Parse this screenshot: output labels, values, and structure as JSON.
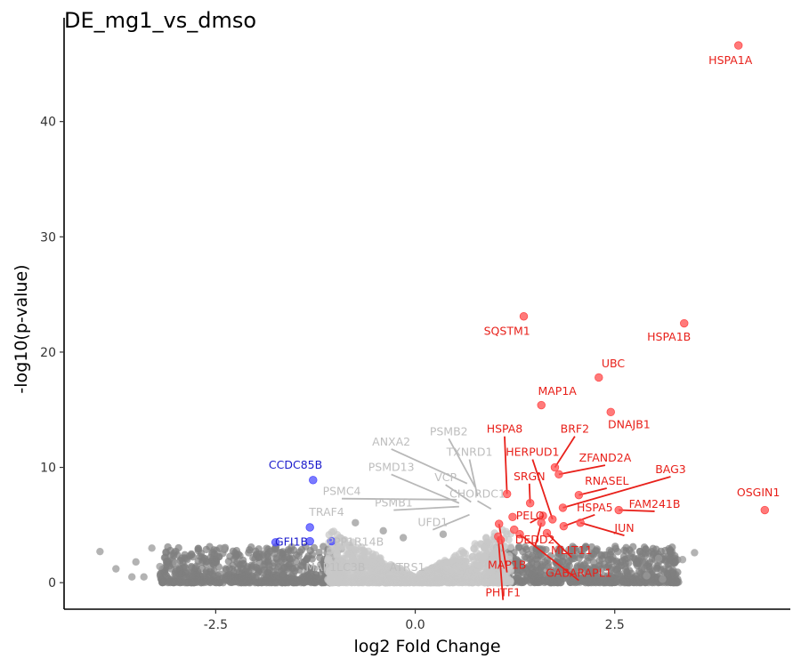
{
  "chart_data": {
    "type": "scatter",
    "title": "DE_mg1_vs_dmso",
    "xlabel": "log2 Fold Change",
    "ylabel": "-log10(p-value)",
    "xlim": [
      -4.4,
      4.7
    ],
    "ylim": [
      -2.3,
      49
    ],
    "xticks": [
      -2.5,
      0.0,
      2.5
    ],
    "xtick_labels": [
      "-2.5",
      "0.0",
      "2.5"
    ],
    "yticks": [
      0,
      10,
      20,
      30,
      40
    ],
    "ytick_labels": [
      "0",
      "10",
      "20",
      "30",
      "40"
    ],
    "grid": false,
    "legend": "none",
    "colors": {
      "up": "#ff4d4d",
      "up_label": "#e8201a",
      "down": "#4d4dff",
      "down_label": "#1a1acc",
      "ns_label": "#bebebe",
      "ns_light": "#c8c8c8",
      "ns_dark": "#7f7f7f"
    },
    "background_points": {
      "dark_left_x_range": [
        -3.2,
        -0.9
      ],
      "dark_right_x_range": [
        0.9,
        3.3
      ],
      "light_x_range": [
        -1.1,
        1.2
      ],
      "y_range": [
        0,
        3.5
      ],
      "outliers": [
        {
          "x": -3.95,
          "y": 2.7
        },
        {
          "x": -3.75,
          "y": 1.2
        },
        {
          "x": -3.5,
          "y": 1.8
        },
        {
          "x": -3.55,
          "y": 0.5
        },
        {
          "x": -3.4,
          "y": 0.5
        },
        {
          "x": -3.2,
          "y": 1.4
        },
        {
          "x": -3.0,
          "y": 1.7
        },
        {
          "x": -3.3,
          "y": 3.0
        },
        {
          "x": -2.4,
          "y": 3.0
        },
        {
          "x": 3.35,
          "y": 2.0
        },
        {
          "x": 3.5,
          "y": 2.6
        },
        {
          "x": 3.05,
          "y": 2.1
        },
        {
          "x": 3.1,
          "y": 0.3
        },
        {
          "x": 2.9,
          "y": 0.6
        },
        {
          "x": -0.75,
          "y": 5.2
        },
        {
          "x": -0.4,
          "y": 4.5
        },
        {
          "x": -0.15,
          "y": 3.9
        },
        {
          "x": 0.35,
          "y": 4.2
        }
      ]
    },
    "highlighted_points": [
      {
        "x": 4.05,
        "y": 46.6,
        "group": "up"
      },
      {
        "x": 3.37,
        "y": 22.5,
        "group": "up"
      },
      {
        "x": 1.36,
        "y": 23.1,
        "group": "up"
      },
      {
        "x": 2.3,
        "y": 17.8,
        "group": "up"
      },
      {
        "x": 1.58,
        "y": 15.4,
        "group": "up"
      },
      {
        "x": 2.45,
        "y": 14.8,
        "group": "up"
      },
      {
        "x": 4.38,
        "y": 6.3,
        "group": "up"
      },
      {
        "x": 1.15,
        "y": 7.7,
        "group": "up"
      },
      {
        "x": 1.44,
        "y": 6.9,
        "group": "up"
      },
      {
        "x": 1.75,
        "y": 10.0,
        "group": "up"
      },
      {
        "x": 1.8,
        "y": 9.4,
        "group": "up"
      },
      {
        "x": 2.05,
        "y": 7.6,
        "group": "up"
      },
      {
        "x": 1.85,
        "y": 6.5,
        "group": "up"
      },
      {
        "x": 2.55,
        "y": 6.3,
        "group": "up"
      },
      {
        "x": 1.22,
        "y": 5.7,
        "group": "up"
      },
      {
        "x": 1.6,
        "y": 5.8,
        "group": "up"
      },
      {
        "x": 1.72,
        "y": 5.5,
        "group": "up"
      },
      {
        "x": 2.07,
        "y": 5.2,
        "group": "up"
      },
      {
        "x": 1.58,
        "y": 5.2,
        "group": "up"
      },
      {
        "x": 1.86,
        "y": 4.9,
        "group": "up"
      },
      {
        "x": 1.05,
        "y": 5.1,
        "group": "up"
      },
      {
        "x": 1.24,
        "y": 4.6,
        "group": "up"
      },
      {
        "x": 1.31,
        "y": 4.2,
        "group": "up"
      },
      {
        "x": 1.04,
        "y": 4.0,
        "group": "up"
      },
      {
        "x": 1.07,
        "y": 3.7,
        "group": "up"
      },
      {
        "x": 1.65,
        "y": 4.3,
        "group": "up"
      },
      {
        "x": -1.28,
        "y": 8.9,
        "group": "down"
      },
      {
        "x": -1.32,
        "y": 4.8,
        "group": "down"
      },
      {
        "x": -1.75,
        "y": 3.5,
        "group": "down"
      },
      {
        "x": -1.32,
        "y": 3.6,
        "group": "down"
      },
      {
        "x": -1.05,
        "y": 3.6,
        "group": "down"
      }
    ],
    "annotations": [
      {
        "text": "HSPA1A",
        "group": "up",
        "x": 3.95,
        "y": 45.0
      },
      {
        "text": "HSPA1B",
        "group": "up",
        "x": 3.18,
        "y": 21.0
      },
      {
        "text": "SQSTM1",
        "group": "up",
        "x": 1.15,
        "y": 21.5
      },
      {
        "text": "UBC",
        "group": "up",
        "x": 2.48,
        "y": 18.7
      },
      {
        "text": "MAP1A",
        "group": "up",
        "x": 1.78,
        "y": 16.3
      },
      {
        "text": "DNAJB1",
        "group": "up",
        "x": 2.68,
        "y": 13.4
      },
      {
        "text": "OSGIN1",
        "group": "up",
        "x": 4.3,
        "y": 7.5
      },
      {
        "text": "HSPA8",
        "group": "up",
        "x": 1.12,
        "y": 13.0,
        "line_to": {
          "x": 1.15,
          "y": 7.7
        }
      },
      {
        "text": "BRF2",
        "group": "up",
        "x": 2.0,
        "y": 13.0,
        "line_to": {
          "x": 1.75,
          "y": 10.0
        }
      },
      {
        "text": "HERPUD1",
        "group": "up",
        "x": 1.47,
        "y": 11.0,
        "line_to": {
          "x": 1.72,
          "y": 5.5
        }
      },
      {
        "text": "ZFAND2A",
        "group": "up",
        "x": 2.38,
        "y": 10.5,
        "line_to": {
          "x": 1.8,
          "y": 9.4
        }
      },
      {
        "text": "SRGN",
        "group": "up",
        "x": 1.43,
        "y": 8.9,
        "line_to": {
          "x": 1.44,
          "y": 6.9
        }
      },
      {
        "text": "BAG3",
        "group": "up",
        "x": 3.2,
        "y": 9.5,
        "line_to": {
          "x": 1.85,
          "y": 6.5
        }
      },
      {
        "text": "RNASEL",
        "group": "up",
        "x": 2.4,
        "y": 8.5,
        "line_to": {
          "x": 2.05,
          "y": 7.6
        }
      },
      {
        "text": "HSPA5",
        "group": "up",
        "x": 2.25,
        "y": 6.2,
        "line_to": {
          "x": 1.86,
          "y": 4.9
        }
      },
      {
        "text": "FAM241B",
        "group": "up",
        "x": 3.0,
        "y": 6.5,
        "line_to": {
          "x": 2.55,
          "y": 6.3
        }
      },
      {
        "text": "PELO",
        "group": "up",
        "x": 1.44,
        "y": 5.5,
        "line_to": {
          "x": 1.6,
          "y": 5.8
        }
      },
      {
        "text": "JUN",
        "group": "up",
        "x": 2.62,
        "y": 4.4,
        "line_to": {
          "x": 2.07,
          "y": 5.2
        }
      },
      {
        "text": "DEDD2",
        "group": "up",
        "x": 1.5,
        "y": 3.4,
        "line_to": {
          "x": 1.58,
          "y": 5.2
        }
      },
      {
        "text": "MLLT11",
        "group": "up",
        "x": 1.96,
        "y": 2.5,
        "line_to": {
          "x": 1.65,
          "y": 4.3
        }
      },
      {
        "text": "MAP1B",
        "group": "up",
        "x": 1.15,
        "y": 1.2,
        "line_to": {
          "x": 1.05,
          "y": 5.1
        }
      },
      {
        "text": "GABARAPL1",
        "group": "up",
        "x": 2.05,
        "y": 0.5,
        "line_to": {
          "x": 1.31,
          "y": 4.2
        }
      },
      {
        "text": "PHTF1",
        "group": "up",
        "x": 1.1,
        "y": -1.2,
        "line_to": {
          "x": 1.04,
          "y": 4.0
        }
      },
      {
        "text": "CCDC85B",
        "group": "down",
        "x": -1.5,
        "y": 9.9
      },
      {
        "text": "GFI1B",
        "group": "down",
        "x": -1.55,
        "y": 3.2
      },
      {
        "text": "ANXA2",
        "group": "ns",
        "x": -0.3,
        "y": 11.9,
        "line_to": {
          "x": 0.65,
          "y": 8.6
        }
      },
      {
        "text": "PSMB2",
        "group": "ns",
        "x": 0.42,
        "y": 12.8,
        "line_to": {
          "x": 0.75,
          "y": 8.3
        }
      },
      {
        "text": "TXNRD1",
        "group": "ns",
        "x": 0.68,
        "y": 11.0,
        "line_to": {
          "x": 0.78,
          "y": 7.5
        }
      },
      {
        "text": "PSMD13",
        "group": "ns",
        "x": -0.3,
        "y": 9.7,
        "line_to": {
          "x": 0.55,
          "y": 6.9
        }
      },
      {
        "text": "VCP",
        "group": "ns",
        "x": 0.38,
        "y": 8.8,
        "line_to": {
          "x": 0.7,
          "y": 7.0
        }
      },
      {
        "text": "PSMC4",
        "group": "ns",
        "x": -0.92,
        "y": 7.6,
        "line_to": {
          "x": 0.52,
          "y": 7.2
        }
      },
      {
        "text": "CHORDC1",
        "group": "ns",
        "x": 0.78,
        "y": 7.4,
        "line_to": {
          "x": 0.95,
          "y": 6.4
        }
      },
      {
        "text": "PSMB1",
        "group": "ns",
        "x": -0.27,
        "y": 6.6,
        "line_to": {
          "x": 0.55,
          "y": 6.6
        }
      },
      {
        "text": "TRAF4",
        "group": "ns",
        "x": -1.11,
        "y": 5.8
      },
      {
        "text": "UFD1",
        "group": "ns",
        "x": 0.22,
        "y": 4.9,
        "line_to": {
          "x": 0.68,
          "y": 5.9
        }
      },
      {
        "text": "PPP1R14B",
        "group": "ns",
        "x": -0.75,
        "y": 3.2
      },
      {
        "text": "MAP1LC3B",
        "group": "ns",
        "x": -1.0,
        "y": 1.0
      },
      {
        "text": "ATRS1",
        "group": "ns",
        "x": -0.1,
        "y": 1.0
      }
    ]
  }
}
